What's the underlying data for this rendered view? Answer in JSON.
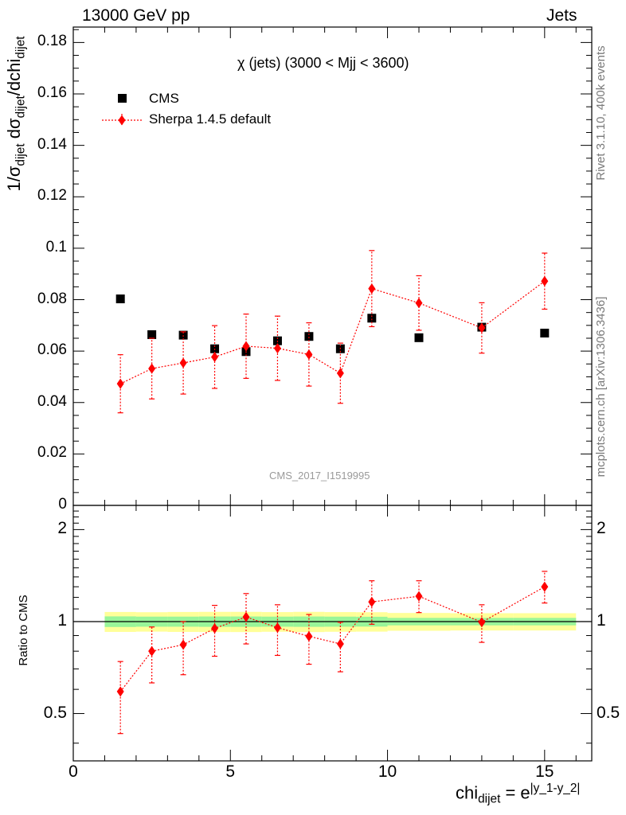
{
  "header": {
    "left": "13000 GeV pp",
    "right": "Jets"
  },
  "side_labels": {
    "rivet": "Rivet 3.1.10,  400k events",
    "mcplots": "mcplots.cern.ch [arXiv:1306.3436]"
  },
  "plot_title": "χ (jets) (3000 < Mjj < 3600)",
  "analysis_id": "CMS_2017_I1519995",
  "main_ylabel": {
    "a": "1/σ",
    "a_sub": "dijet",
    "b": " dσ",
    "b_sub": "dijet",
    "c": "/dchi",
    "c_sub": "dijet"
  },
  "ratio_ylabel": "Ratio to CMS",
  "xlabel": {
    "base": "chi",
    "base_sub": "dijet",
    "eq": " = e",
    "exp": "|y_1-y_2|"
  },
  "legend": [
    {
      "label": "CMS",
      "color": "#000000",
      "marker": "square"
    },
    {
      "label": "Sherpa 1.4.5 default",
      "color": "#ff0000",
      "marker": "diamond"
    }
  ],
  "chart_data": [
    {
      "type": "scatter",
      "panel": "main",
      "x_range": [
        0,
        16.5
      ],
      "ylim": [
        0,
        0.186
      ],
      "y_ticks": [
        "0",
        "0.02",
        "0.04",
        "0.06",
        "0.08",
        "0.1",
        "0.12",
        "0.14",
        "0.16",
        "0.18"
      ],
      "x_ticks": [
        "0",
        "5",
        "10",
        "15"
      ],
      "series": [
        {
          "name": "CMS",
          "marker": "square",
          "color": "#000000",
          "x": [
            1.5,
            2.5,
            3.5,
            4.5,
            5.5,
            6.5,
            7.5,
            8.5,
            9.5,
            11,
            13,
            15
          ],
          "y": [
            0.0803,
            0.0664,
            0.0662,
            0.0609,
            0.0598,
            0.064,
            0.0657,
            0.0609,
            0.0728,
            0.0652,
            0.0693,
            0.067
          ],
          "bin_edges": [
            1,
            2,
            3,
            4,
            5,
            6,
            7,
            8,
            9,
            10,
            12,
            14,
            16
          ]
        },
        {
          "name": "Sherpa 1.4.5 default",
          "marker": "diamond",
          "color": "#ff0000",
          "x": [
            1.5,
            2.5,
            3.5,
            4.5,
            5.5,
            6.5,
            7.5,
            8.5,
            9.5,
            11,
            13,
            15
          ],
          "y": [
            0.0473,
            0.0532,
            0.0554,
            0.0577,
            0.0619,
            0.0611,
            0.0587,
            0.0514,
            0.0843,
            0.0787,
            0.069,
            0.0872
          ],
          "y_err_low": [
            0.0113,
            0.0118,
            0.0121,
            0.0122,
            0.0125,
            0.0125,
            0.0123,
            0.0117,
            0.0148,
            0.0106,
            0.0098,
            0.0109
          ],
          "y_err_high": [
            0.0113,
            0.0118,
            0.0121,
            0.0122,
            0.0125,
            0.0125,
            0.0123,
            0.0117,
            0.0148,
            0.0106,
            0.0098,
            0.0109
          ]
        }
      ]
    },
    {
      "type": "scatter",
      "panel": "ratio",
      "x_range": [
        0,
        16.5
      ],
      "ylim": [
        0.35,
        2.4
      ],
      "y_scale": "log",
      "y_ticks": [
        "0.5",
        "1",
        "2"
      ],
      "reference_line": 1,
      "bands": [
        {
          "name": "yellow",
          "color": "#ffff99",
          "edges": [
            1,
            2,
            3,
            4,
            5,
            6,
            7,
            8,
            9,
            10,
            12,
            14,
            16
          ],
          "low": [
            0.925,
            0.927,
            0.925,
            0.924,
            0.924,
            0.926,
            0.924,
            0.926,
            0.927,
            0.933,
            0.935,
            0.935
          ],
          "high": [
            1.075,
            1.073,
            1.075,
            1.076,
            1.076,
            1.074,
            1.076,
            1.074,
            1.073,
            1.067,
            1.065,
            1.065
          ]
        },
        {
          "name": "green",
          "color": "#99f599",
          "edges": [
            1,
            2,
            3,
            4,
            5,
            6,
            7,
            8,
            9,
            10,
            12,
            14,
            16
          ],
          "low": [
            0.96,
            0.962,
            0.962,
            0.961,
            0.961,
            0.962,
            0.961,
            0.962,
            0.963,
            0.972,
            0.972,
            0.972
          ],
          "high": [
            1.04,
            1.038,
            1.038,
            1.039,
            1.039,
            1.038,
            1.039,
            1.038,
            1.037,
            1.028,
            1.028,
            1.028
          ]
        }
      ],
      "series": [
        {
          "name": "Sherpa 1.4.5 default",
          "color": "#ff0000",
          "x": [
            1.5,
            2.5,
            3.5,
            4.5,
            5.5,
            6.5,
            7.5,
            8.5,
            9.5,
            11,
            13,
            15
          ],
          "y": [
            0.59,
            0.8,
            0.84,
            0.95,
            1.035,
            0.955,
            0.895,
            0.845,
            1.16,
            1.21,
            0.995,
            1.3
          ],
          "y_err_low": [
            0.16,
            0.17,
            0.17,
            0.18,
            0.19,
            0.18,
            0.17,
            0.16,
            0.18,
            0.14,
            0.14,
            0.15
          ],
          "y_err_high": [
            0.15,
            0.16,
            0.16,
            0.18,
            0.2,
            0.18,
            0.16,
            0.15,
            0.2,
            0.15,
            0.14,
            0.16
          ]
        }
      ]
    }
  ]
}
